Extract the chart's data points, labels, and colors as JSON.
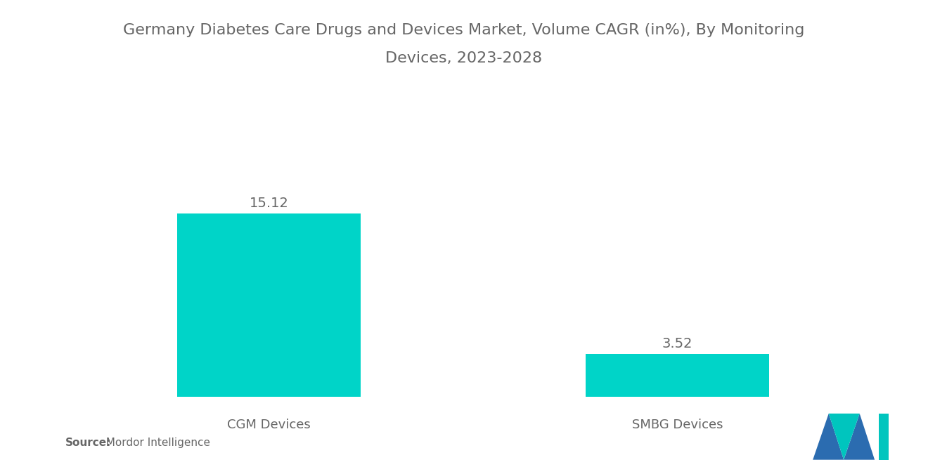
{
  "title_line1": "Germany Diabetes Care Drugs and Devices Market, Volume CAGR (in%), By Monitoring",
  "title_line2": "Devices, 2023-2028",
  "categories": [
    "CGM Devices",
    "SMBG Devices"
  ],
  "values": [
    15.12,
    3.52
  ],
  "bar_color": "#00D4C8",
  "background_color": "#ffffff",
  "title_color": "#666666",
  "label_color": "#666666",
  "value_fontsize": 14,
  "category_fontsize": 13,
  "title_fontsize": 16,
  "source_bold": "Source:",
  "source_normal": "  Mordor Intelligence",
  "ylim": [
    0,
    20
  ],
  "logo_blue": "#2B6CB0",
  "logo_teal": "#00C5BE"
}
